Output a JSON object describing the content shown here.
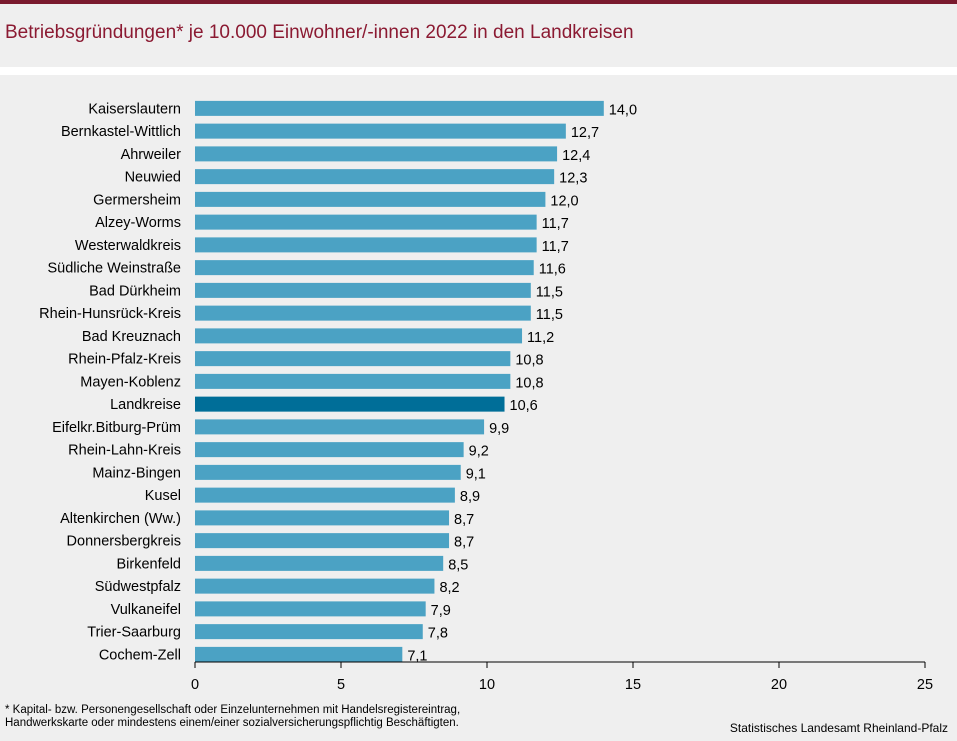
{
  "chart_data": {
    "type": "bar",
    "orientation": "horizontal",
    "title": "Betriebsgründungen* je 10.000 Einwohner/-innen 2022 in den Landkreisen",
    "categories": [
      "Kaiserslautern",
      "Bernkastel-Wittlich",
      "Ahrweiler",
      "Neuwied",
      "Germersheim",
      "Alzey-Worms",
      "Westerwaldkreis",
      "Südliche Weinstraße",
      "Bad Dürkheim",
      "Rhein-Hunsrück-Kreis",
      "Bad Kreuznach",
      "Rhein-Pfalz-Kreis",
      "Mayen-Koblenz",
      "Landkreise",
      "Eifelkr.Bitburg-Prüm",
      "Rhein-Lahn-Kreis",
      "Mainz-Bingen",
      "Kusel",
      "Altenkirchen (Ww.)",
      "Donnersbergkreis",
      "Birkenfeld",
      "Südwestpfalz",
      "Vulkaneifel",
      "Trier-Saarburg",
      "Cochem-Zell"
    ],
    "values": [
      14.0,
      12.7,
      12.4,
      12.3,
      12.0,
      11.7,
      11.7,
      11.6,
      11.5,
      11.5,
      11.2,
      10.8,
      10.8,
      10.6,
      9.9,
      9.2,
      9.1,
      8.9,
      8.7,
      8.7,
      8.5,
      8.2,
      7.9,
      7.8,
      7.1
    ],
    "value_labels": [
      "14,0",
      "12,7",
      "12,4",
      "12,3",
      "12,0",
      "11,7",
      "11,7",
      "11,6",
      "11,5",
      "11,5",
      "11,2",
      "10,8",
      "10,8",
      "10,6",
      "9,9",
      "9,2",
      "9,1",
      "8,9",
      "8,7",
      "8,7",
      "8,5",
      "8,2",
      "7,9",
      "7,8",
      "7,1"
    ],
    "highlight": "Landkreise",
    "xlim": [
      0,
      25
    ],
    "xticks": [
      0,
      5,
      10,
      15,
      20,
      25
    ],
    "xlabel": "",
    "ylabel": "",
    "grid": false,
    "colors": {
      "bar": "#4ba2c4",
      "highlight": "#006e98",
      "axis": "#000000"
    }
  },
  "footnote": {
    "line1": "* Kapital- bzw. Personengesellschaft  oder Einzelunternehmen  mit  Handelsregistereintrag,",
    "line2": "Handwerkskarte  oder  mindestens  einem/einer  sozialversicherungspflichtig  Beschäftigten."
  },
  "source": "Statistisches Landesamt Rheinland-Pfalz",
  "colors": {
    "title": "#8b1a32",
    "top_bar": "#7a1a2e",
    "background": "#efefef"
  }
}
